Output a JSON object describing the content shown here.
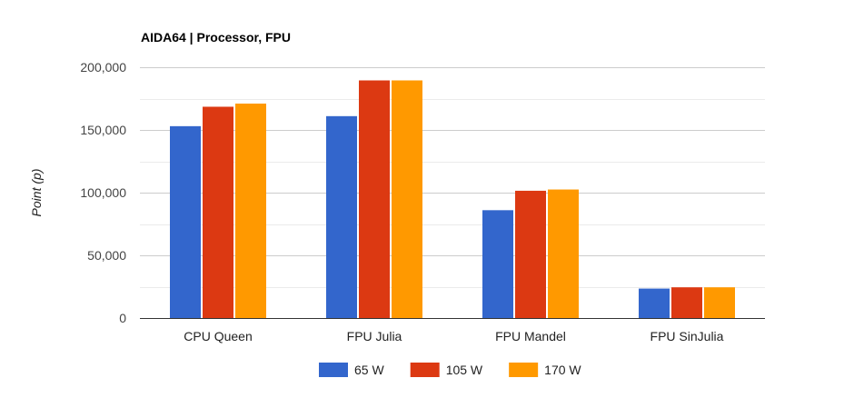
{
  "chart_data": {
    "type": "bar",
    "title": "AIDA64 | Processor, FPU",
    "xlabel": "",
    "ylabel": "Point (p)",
    "ylim": [
      0,
      200000
    ],
    "yticks": [
      0,
      50000,
      100000,
      150000,
      200000
    ],
    "ytick_labels": [
      "0",
      "50,000",
      "100,000",
      "150,000",
      "200,000"
    ],
    "categories": [
      "CPU Queen",
      "FPU Julia",
      "FPU Mandel",
      "FPU SinJulia"
    ],
    "series": [
      {
        "name": "65 W",
        "color": "#3366cc",
        "values": [
          153000,
          161000,
          86000,
          23500
        ]
      },
      {
        "name": "105 W",
        "color": "#dc3912",
        "values": [
          168500,
          189500,
          101500,
          24500
        ]
      },
      {
        "name": "170 W",
        "color": "#ff9900",
        "values": [
          171000,
          189500,
          102500,
          24500
        ]
      }
    ],
    "grid": true,
    "legend_position": "bottom"
  }
}
